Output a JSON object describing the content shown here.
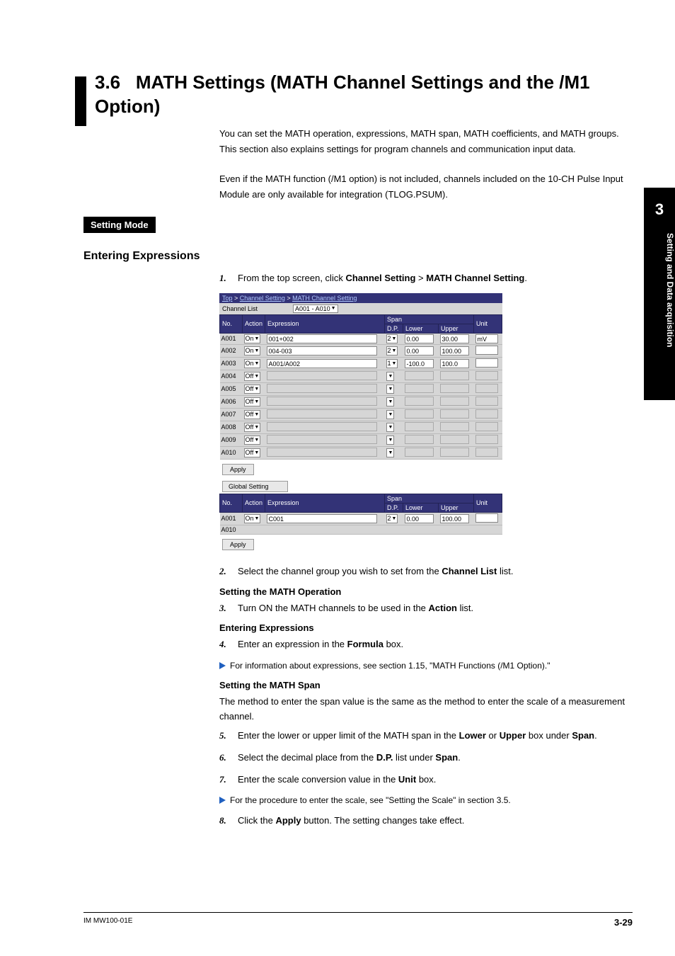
{
  "sideTab": {
    "number": "3",
    "label": "Setting and Data acquisition"
  },
  "section": {
    "number": "3.6",
    "title": "MATH Settings (MATH Channel Settings and the /M1 Option)",
    "intro1": "You can set the MATH operation, expressions, MATH span, MATH coefficients, and MATH groups. This section also explains settings for program channels and communication input data.",
    "intro2": "Even if the MATH function (/M1 option) is not included, channels included on the 10-CH Pulse Input Module are only available for integration (TLOG.PSUM)."
  },
  "settingMode": "Setting Mode",
  "enteringExpressions": "Entering Expressions",
  "steps": {
    "s1_pre": "From the top screen, click ",
    "s1_b1": "Channel Setting",
    "s1_mid": " > ",
    "s1_b2": "MATH Channel Setting",
    "s1_post": ".",
    "s2_pre": "Select the channel group you wish to set from the ",
    "s2_b": "Channel List",
    "s2_post": " list.",
    "s3_pre": "Turn ON the MATH channels to be used in the ",
    "s3_b": "Action",
    "s3_post": " list.",
    "s4_pre": "Enter an expression in the ",
    "s4_b": "Formula",
    "s4_post": " box.",
    "s5_pre": "Enter the lower or upper limit of the MATH span in the ",
    "s5_b1": "Lower",
    "s5_mid": " or ",
    "s5_b2": "Upper",
    "s5_post": " box under ",
    "s5_b3": "Span",
    "s5_end": ".",
    "s6_pre": "Select the decimal place from the ",
    "s6_b1": "D.P.",
    "s6_mid": " list under ",
    "s6_b2": "Span",
    "s6_post": ".",
    "s7_pre": "Enter the scale conversion value in the ",
    "s7_b": "Unit",
    "s7_post": " box.",
    "s8_pre": "Click the ",
    "s8_b": "Apply",
    "s8_post": " button. The setting changes take effect."
  },
  "subheads": {
    "mathOp": "Setting the MATH Operation",
    "entExp": "Entering Expressions",
    "mathSpan": "Setting the MATH Span",
    "spanPara": "The method to enter the span value is the same as the method to enter the scale of a measurement channel."
  },
  "xref1": "For information about expressions, see section 1.15, \"MATH Functions (/M1 Option).\"",
  "xref2": "For the procedure to enter the scale, see \"Setting the Scale\" in section 3.5.",
  "shot": {
    "breadcrumb": {
      "top": "Top",
      "ch": "Channel Setting",
      "math": "MATH Channel Setting"
    },
    "channelListLabel": "Channel List",
    "channelListValue": "A001 - A010",
    "headers": {
      "no": "No.",
      "action": "Action",
      "expr": "Expression",
      "span": "Span",
      "dp": "D.P.",
      "lower": "Lower",
      "upper": "Upper",
      "unit": "Unit"
    },
    "rows": [
      {
        "no": "A001",
        "action": "On",
        "expr": "001+002",
        "dp": "2",
        "lower": "0.00",
        "upper": "30.00",
        "unit": "mV"
      },
      {
        "no": "A002",
        "action": "On",
        "expr": "004-003",
        "dp": "2",
        "lower": "0.00",
        "upper": "100.00",
        "unit": ""
      },
      {
        "no": "A003",
        "action": "On",
        "expr": "A001/A002",
        "dp": "1",
        "lower": "-100.0",
        "upper": "100.0",
        "unit": ""
      },
      {
        "no": "A004",
        "action": "Off",
        "expr": "",
        "dp": "",
        "lower": "",
        "upper": "",
        "unit": ""
      },
      {
        "no": "A005",
        "action": "Off",
        "expr": "",
        "dp": "",
        "lower": "",
        "upper": "",
        "unit": ""
      },
      {
        "no": "A006",
        "action": "Off",
        "expr": "",
        "dp": "",
        "lower": "",
        "upper": "",
        "unit": ""
      },
      {
        "no": "A007",
        "action": "Off",
        "expr": "",
        "dp": "",
        "lower": "",
        "upper": "",
        "unit": ""
      },
      {
        "no": "A008",
        "action": "Off",
        "expr": "",
        "dp": "",
        "lower": "",
        "upper": "",
        "unit": ""
      },
      {
        "no": "A009",
        "action": "Off",
        "expr": "",
        "dp": "",
        "lower": "",
        "upper": "",
        "unit": ""
      },
      {
        "no": "A010",
        "action": "Off",
        "expr": "",
        "dp": "",
        "lower": "",
        "upper": "",
        "unit": ""
      }
    ],
    "applyLabel": "Apply",
    "globalLabel": "Global Setting",
    "globalRows": [
      {
        "no": "A001",
        "action": "On",
        "expr": "C001",
        "dp": "2",
        "lower": "0.00",
        "upper": "100.00",
        "unit": ""
      },
      {
        "no": "A010",
        "action": "",
        "expr": "",
        "dp": "",
        "lower": "",
        "upper": "",
        "unit": ""
      }
    ]
  },
  "footer": {
    "left": "IM MW100-01E",
    "right": "3-29"
  }
}
